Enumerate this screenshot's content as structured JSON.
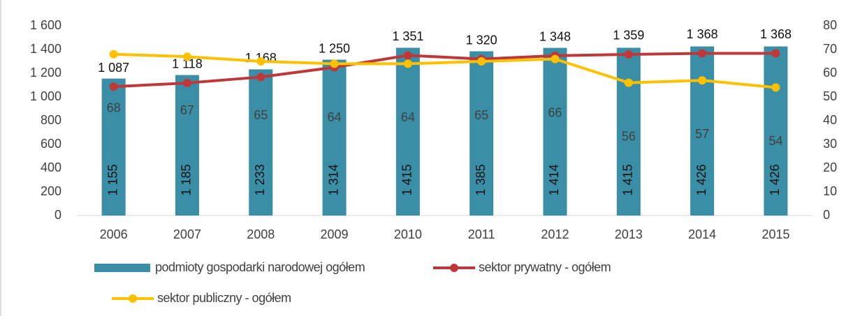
{
  "chart_data": {
    "type": "bar_line",
    "categories": [
      "2006",
      "2007",
      "2008",
      "2009",
      "2010",
      "2011",
      "2012",
      "2013",
      "2014",
      "2015"
    ],
    "series": [
      {
        "name": "podmioty gospodarki narodowej ogółem",
        "type": "bar",
        "color": "#3a8ea6",
        "values": [
          1155,
          1185,
          1233,
          1314,
          1415,
          1385,
          1414,
          1415,
          1426,
          1426
        ],
        "value_labels": [
          "1 155",
          "1 185",
          "1 233",
          "1 314",
          "1 415",
          "1 385",
          "1 414",
          "1 415",
          "1 426",
          "1 426"
        ]
      },
      {
        "name": "sektor prywatny - ogółem",
        "type": "line",
        "color": "#c0373a",
        "values": [
          1087,
          1118,
          1168,
          1250,
          1351,
          1320,
          1348,
          1359,
          1368,
          1368
        ],
        "value_labels": [
          "1 087",
          "1 118",
          "1 168",
          "1 250",
          "1 351",
          "1 320",
          "1 348",
          "1 359",
          "1 368",
          "1 368"
        ]
      },
      {
        "name": "sektor publiczny - ogółem",
        "type": "line",
        "color": "#ffc000",
        "axis": "y2",
        "values": [
          68,
          67,
          65,
          64,
          64,
          65,
          66,
          56,
          57,
          54
        ]
      }
    ],
    "ylim": [
      0,
      1600
    ],
    "yticks": [
      0,
      200,
      400,
      600,
      800,
      {
        "value": 1000,
        "label": "1 000"
      },
      {
        "value": 1200,
        "label": "1 200"
      },
      {
        "value": 1400,
        "label": "1 400"
      },
      {
        "value": 1600,
        "label": "1 600"
      }
    ],
    "y2lim": [
      0,
      80
    ],
    "y2ticks": [
      0,
      10,
      20,
      30,
      40,
      50,
      60,
      70,
      80
    ],
    "legend": "bottom"
  }
}
